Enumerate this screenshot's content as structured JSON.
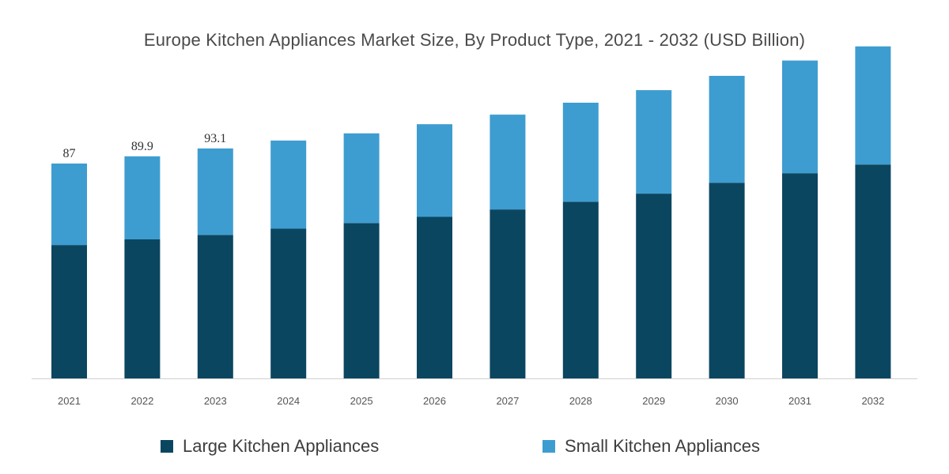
{
  "title": "Europe Kitchen Appliances Market Size, By Product Type, 2021 - 2032 (USD Billion)",
  "colors": {
    "large": "#0b4660",
    "small": "#3e9dd0",
    "axis": "#d0d0d0"
  },
  "chart_data": {
    "type": "bar",
    "stacked": true,
    "title": "Europe Kitchen Appliances Market Size, By Product Type, 2021 - 2032 (USD Billion)",
    "categories": [
      "2021",
      "2022",
      "2023",
      "2024",
      "2025",
      "2026",
      "2027",
      "2028",
      "2029",
      "2030",
      "2031",
      "2032"
    ],
    "series": [
      {
        "name": "Large Kitchen Appliances",
        "values": [
          54,
          56.3,
          58.1,
          60.6,
          62.9,
          65.4,
          68.4,
          71.5,
          74.8,
          79.2,
          83.1,
          86.6
        ]
      },
      {
        "name": "Small Kitchen Appliances",
        "values": [
          33,
          33.6,
          35,
          35.7,
          36.3,
          37.5,
          38.4,
          40.1,
          41.9,
          43.3,
          45.6,
          47.8
        ]
      }
    ],
    "data_labels": [
      "87",
      "89.9",
      "93.1"
    ],
    "ylim": [
      0,
      134
    ],
    "grid": false,
    "legend": "bottom"
  }
}
